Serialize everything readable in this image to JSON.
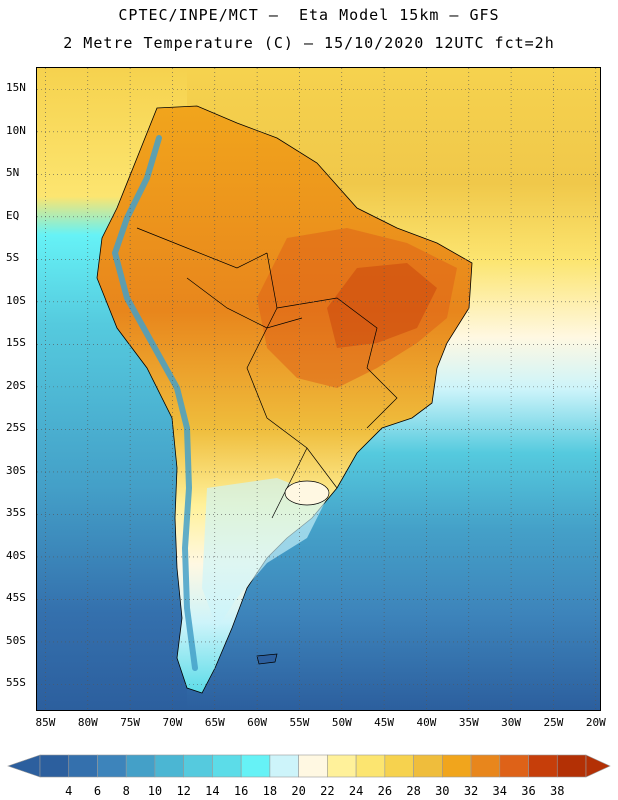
{
  "header": {
    "title_line_1": "CPTEC/INPE/MCT –  Eta Model 15km – GFS",
    "title_line_2": "2 Metre Temperature (C) – 15/10/2020 12UTC fct=2h"
  },
  "map": {
    "latitude_labels": [
      "15N",
      "10N",
      "5N",
      "EQ",
      "5S",
      "10S",
      "15S",
      "20S",
      "25S",
      "30S",
      "35S",
      "40S",
      "45S",
      "50S",
      "55S"
    ],
    "latitude_values": [
      15,
      10,
      5,
      0,
      -5,
      -10,
      -15,
      -20,
      -25,
      -30,
      -35,
      -40,
      -45,
      -50,
      -55
    ],
    "longitude_labels": [
      "85W",
      "80W",
      "75W",
      "70W",
      "65W",
      "60W",
      "55W",
      "50W",
      "45W",
      "40W",
      "35W",
      "30W",
      "25W",
      "20W"
    ],
    "longitude_values": [
      -85,
      -80,
      -75,
      -70,
      -65,
      -60,
      -55,
      -50,
      -45,
      -40,
      -35,
      -30,
      -25,
      -20
    ],
    "lat_range": [
      -58,
      17.5
    ],
    "lon_range": [
      -86,
      -19.5
    ]
  },
  "colorbar": {
    "labels": [
      "4",
      "6",
      "8",
      "10",
      "12",
      "14",
      "16",
      "18",
      "20",
      "22",
      "24",
      "26",
      "28",
      "30",
      "32",
      "34",
      "36",
      "38"
    ],
    "colors": [
      "#2c5f9e",
      "#3470ad",
      "#3d84bb",
      "#44a0c8",
      "#4bb6d3",
      "#55cade",
      "#5cdce8",
      "#66f2f6",
      "#cdf4fa",
      "#fff8e2",
      "#fff19a",
      "#fce570",
      "#f6d24e",
      "#efbd3c",
      "#f1a51c",
      "#e8861c",
      "#de6218",
      "#c63e0a",
      "#b33005"
    ]
  }
}
